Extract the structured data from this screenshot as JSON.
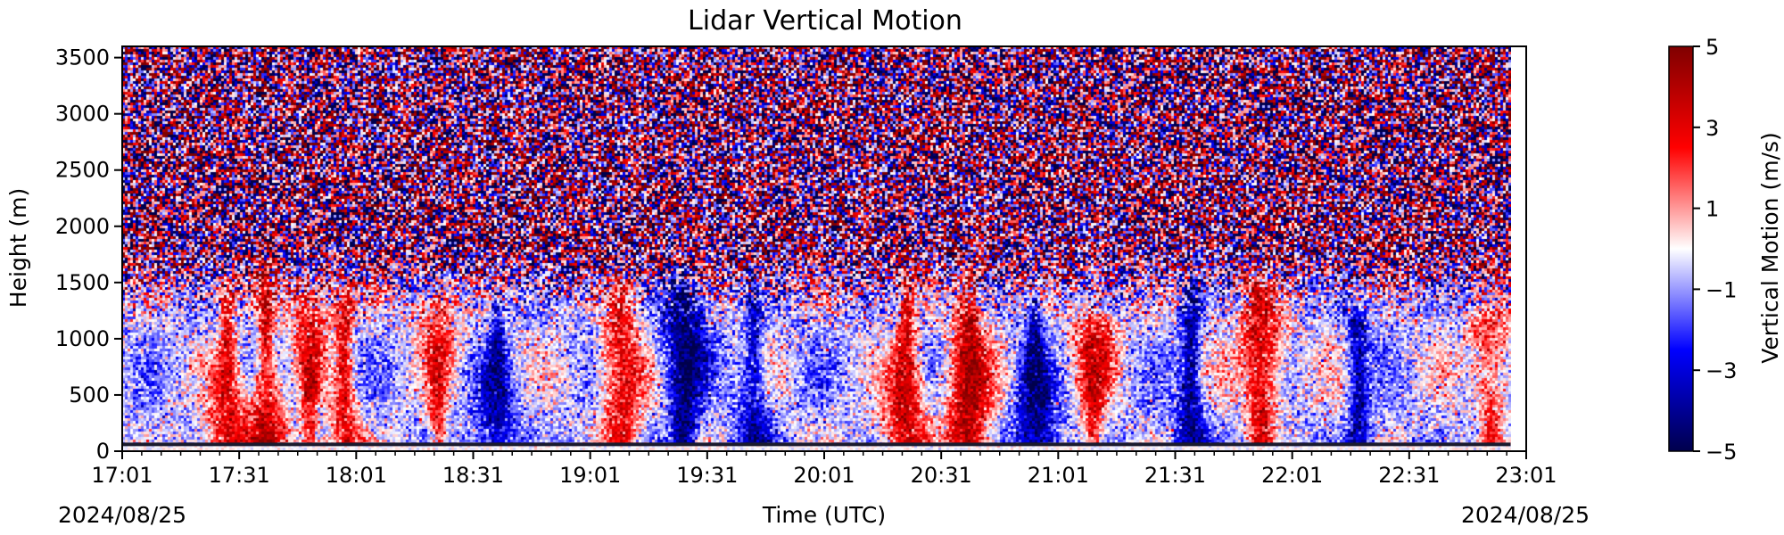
{
  "chart_data": {
    "type": "heatmap",
    "title": "Lidar Vertical Motion",
    "xlabel": "Time (UTC)",
    "ylabel": "Height (m)",
    "colorbar_label": "Vertical Motion (m/s)",
    "colormap": "seismic",
    "colormap_stops": [
      "#00004c",
      "#0000ff",
      "#ffffff",
      "#ff0000",
      "#7f0000"
    ],
    "x_ticks": [
      "17:01",
      "17:31",
      "18:01",
      "18:31",
      "19:01",
      "19:31",
      "20:01",
      "20:31",
      "21:01",
      "21:31",
      "22:01",
      "22:31",
      "23:01"
    ],
    "x_date_left": "2024/08/25",
    "x_date_right": "2024/08/25",
    "y_ticks": [
      0,
      500,
      1000,
      1500,
      2000,
      2500,
      3000,
      3500
    ],
    "ylim": [
      0,
      3600
    ],
    "colorbar_ticks": [
      5,
      3,
      1,
      -1,
      -3,
      -5
    ],
    "clim": [
      -5,
      5
    ],
    "data_end_time": "22:57",
    "noise_above_height_m": 1900,
    "updraft_plumes": [
      {
        "time": "17:28",
        "top_m": 1400,
        "value": 3
      },
      {
        "time": "17:38",
        "top_m": 1500,
        "value": 3.5
      },
      {
        "time": "17:49",
        "top_m": 1400,
        "value": 3
      },
      {
        "time": "17:58",
        "top_m": 1400,
        "value": 3
      },
      {
        "time": "18:22",
        "top_m": 1300,
        "value": 2.5
      },
      {
        "time": "19:09",
        "top_m": 1500,
        "value": 3
      },
      {
        "time": "20:22",
        "top_m": 1600,
        "value": 3.5
      },
      {
        "time": "20:38",
        "top_m": 2000,
        "value": 4
      },
      {
        "time": "21:10",
        "top_m": 1100,
        "value": 3
      },
      {
        "time": "21:53",
        "top_m": 1500,
        "value": 3.5
      },
      {
        "time": "22:52",
        "top_m": 1100,
        "value": 2.5
      }
    ],
    "downdraft_plumes": [
      {
        "time": "18:37",
        "top_m": 1300,
        "value": -2.5
      },
      {
        "time": "19:25",
        "top_m": 1500,
        "value": -3.5
      },
      {
        "time": "19:43",
        "top_m": 1300,
        "value": -2.5
      },
      {
        "time": "20:55",
        "top_m": 1300,
        "value": -3
      },
      {
        "time": "21:35",
        "top_m": 1400,
        "value": -3
      },
      {
        "time": "22:18",
        "top_m": 1200,
        "value": -2.5
      }
    ]
  }
}
